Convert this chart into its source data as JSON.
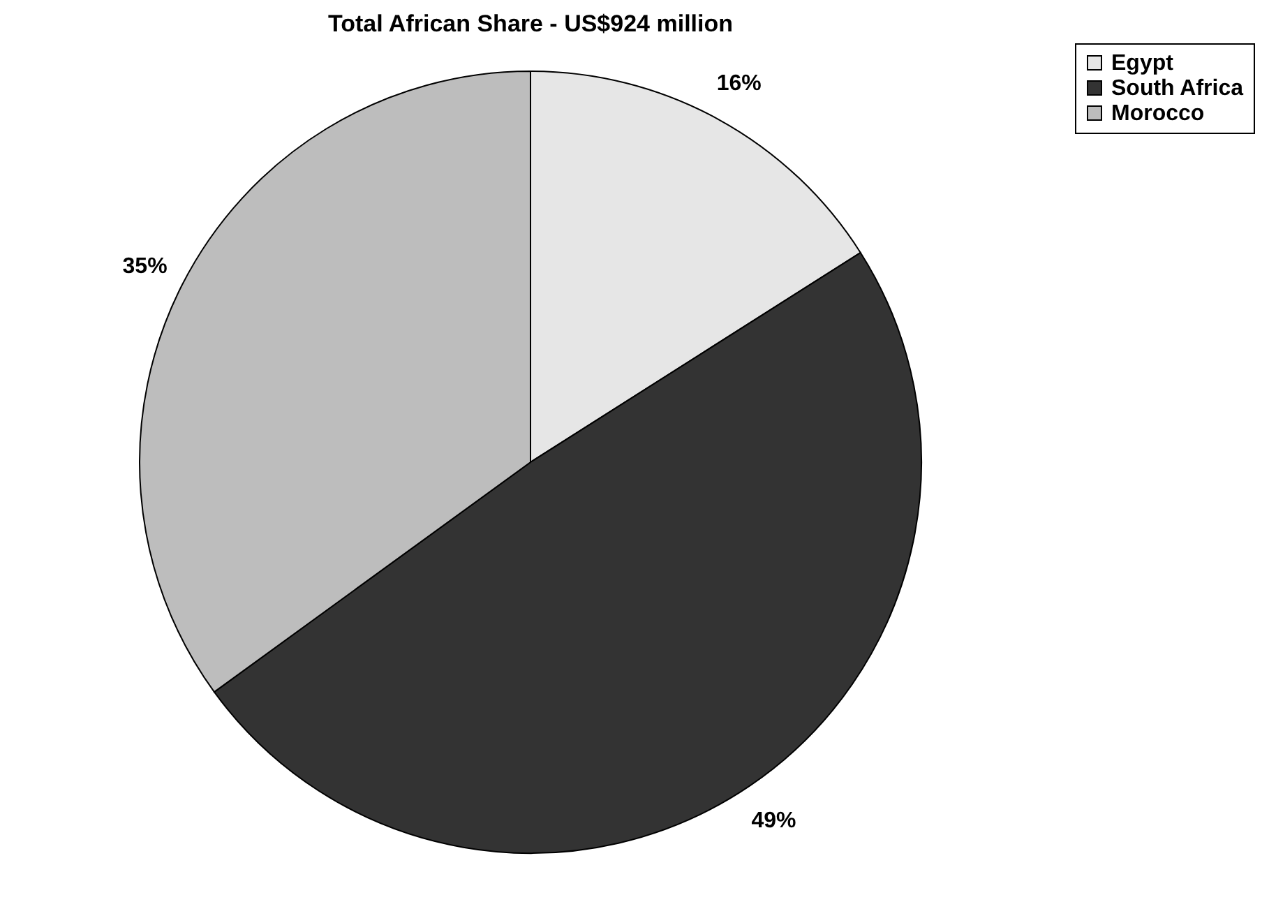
{
  "chart_data": {
    "type": "pie",
    "title": "Total African Share - US$924 million",
    "categories": [
      "Egypt",
      "South Africa",
      "Morocco"
    ],
    "values": [
      16,
      49,
      35
    ],
    "value_labels": [
      "16%",
      "49%",
      "35%"
    ],
    "colors": [
      "#e6e6e6",
      "#333333",
      "#bdbdbd"
    ],
    "legend": "right"
  }
}
